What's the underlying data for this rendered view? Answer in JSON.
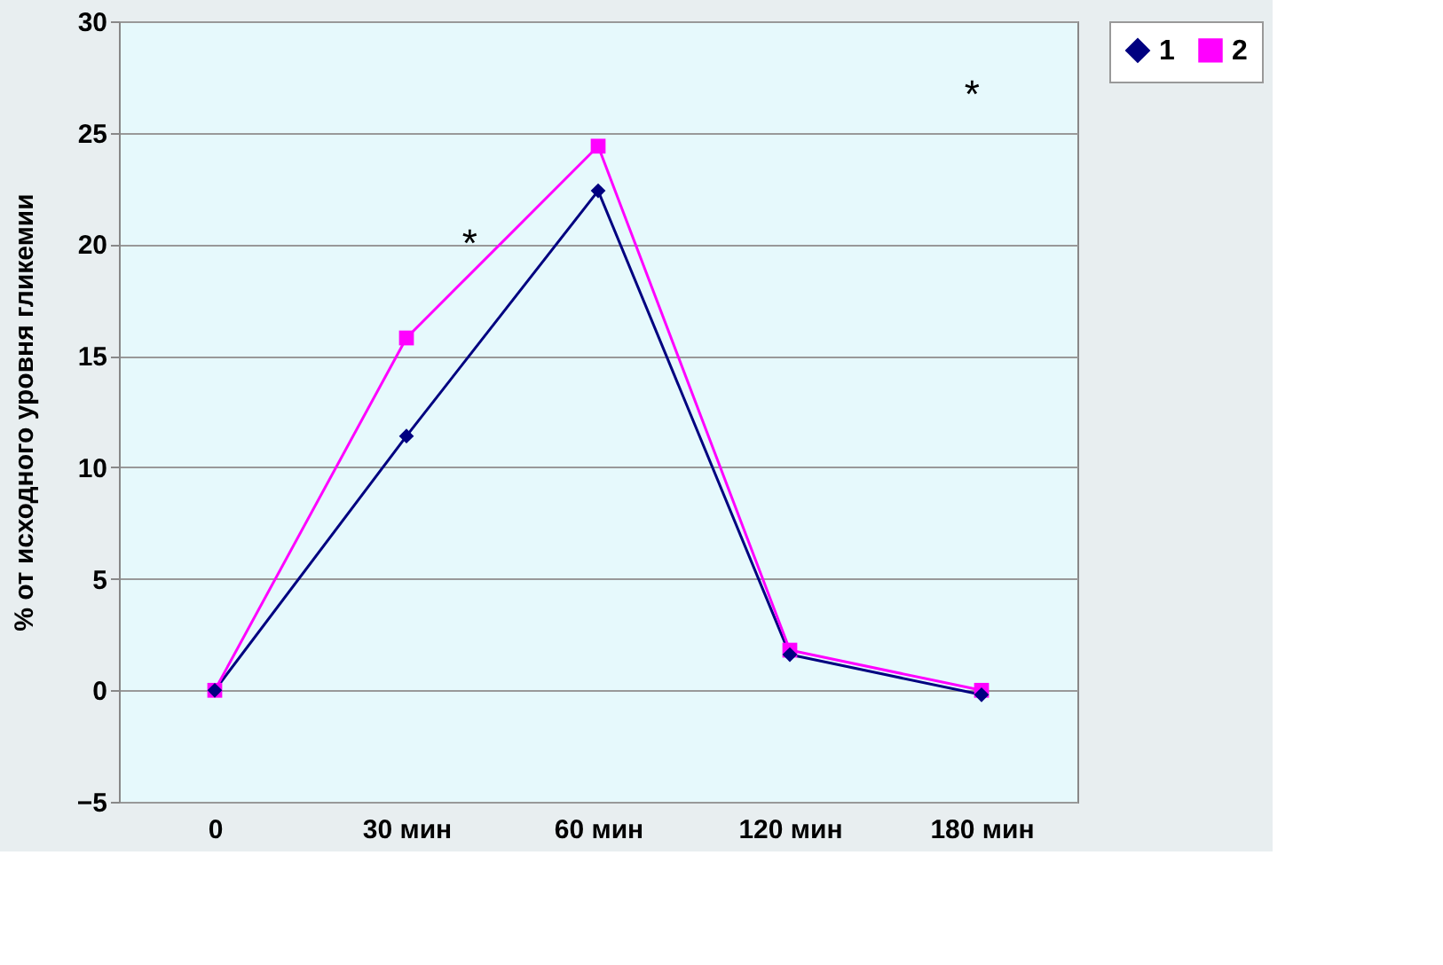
{
  "chart_data": {
    "type": "line",
    "ylabel": "% от исходного уровня гликемии",
    "categories": [
      "0",
      "30 мин",
      "60 мин",
      "120 мин",
      "180 мин"
    ],
    "series": [
      {
        "name": "1",
        "color": "#000080",
        "marker": "diamond",
        "values": [
          0,
          11.4,
          22.4,
          1.6,
          -0.2
        ]
      },
      {
        "name": "2",
        "color": "#ff00ff",
        "marker": "square",
        "values": [
          0,
          15.8,
          24.4,
          1.8,
          0
        ]
      }
    ],
    "ylim": [
      -5,
      30
    ],
    "yticks": [
      -5,
      0,
      5,
      10,
      15,
      20,
      25,
      30
    ],
    "grid": "y",
    "legend": "right",
    "annotations": [
      "*",
      "*"
    ]
  }
}
